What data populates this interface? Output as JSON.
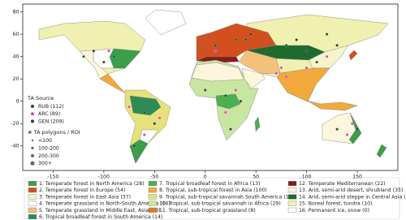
{
  "chart_data": {
    "type": "scatter",
    "xlim": [
      -180,
      190
    ],
    "ylim": [
      -62,
      87
    ],
    "xticks": [
      -150,
      -100,
      -50,
      0,
      50,
      100,
      150
    ],
    "yticks": [
      -40,
      -20,
      0,
      20,
      40,
      60,
      80
    ],
    "source_legend_title": "TA Source",
    "size_legend_title": "# TA polygons / ROI",
    "size_legend": [
      "<100",
      "100-200",
      "200-300",
      "300+"
    ],
    "series": [
      {
        "name": "RUB (112)",
        "color": "#0b5d1e",
        "x": [
          -120,
          -90,
          10,
          30,
          40,
          80,
          100,
          120,
          110,
          -60,
          20,
          130
        ],
        "y": [
          40,
          40,
          50,
          55,
          55,
          50,
          45,
          60,
          35,
          -10,
          5,
          -25
        ]
      },
      {
        "name": "ARC (89)",
        "color": "#e03cc4",
        "x": [
          -95,
          -75,
          -45,
          -60,
          10,
          20,
          30,
          80,
          100,
          120,
          140,
          145,
          75,
          70
        ],
        "y": [
          45,
          -5,
          -15,
          -30,
          45,
          -10,
          10,
          22,
          30,
          40,
          -30,
          -20,
          30,
          25
        ]
      },
      {
        "name": "GEN (209)",
        "color": "#2b3a3a",
        "x": [
          -110,
          -100,
          -50,
          0,
          35,
          25,
          60,
          90,
          130,
          150,
          -70,
          45
        ],
        "y": [
          45,
          35,
          -20,
          10,
          0,
          -25,
          45,
          55,
          50,
          -25,
          -40,
          60
        ]
      }
    ],
    "regions": [
      {
        "name": "1. Temperate forest in North America (28)",
        "color": "#3a9e4a"
      },
      {
        "name": "2. Temperate forest in Europe (54)",
        "color": "#d2501e"
      },
      {
        "name": "3. Temperate forest in East Asia (37)",
        "color": "#f3f3cc"
      },
      {
        "name": "4. Temperate grassland in North-South America (16)",
        "color": "#ffffff"
      },
      {
        "name": "5. Temperate grassland in Middle East, Asia (13)",
        "color": "#f4c17a"
      },
      {
        "name": "6. Tropical broadleaf forest in South America (14)",
        "color": "#2e8b57"
      },
      {
        "name": "7. Tropical broadleaf forest in Africa (13)",
        "color": "#4caf50"
      },
      {
        "name": "8. Tropical, sub-tropical forest in Asia (100)",
        "color": "#f2a93b"
      },
      {
        "name": "9. Tropical, sub-tropical savannah South America (13)",
        "color": "#e6e27a"
      },
      {
        "name": "10. Tropical, sub-tropical savannah in Africa (29)",
        "color": "#c8e6a0"
      },
      {
        "name": "11. Tropical, sub-tropical grassland (8)",
        "color": "#e07b20"
      },
      {
        "name": "12. Temperate Mediterranean (22)",
        "color": "#8b1a1a"
      },
      {
        "name": "13. Arid, semi-arid desert, shrubland (35)",
        "color": "#fdf5dc"
      },
      {
        "name": "14. Arid, semi-arid steppe in Central Asia (18)",
        "color": "#1e6b2e"
      },
      {
        "name": "15. Boreal forest, tundra (10)",
        "color": "#f0f0b0"
      },
      {
        "name": "16. Permanent ice, snow (0)",
        "color": "#ffffff"
      }
    ]
  }
}
